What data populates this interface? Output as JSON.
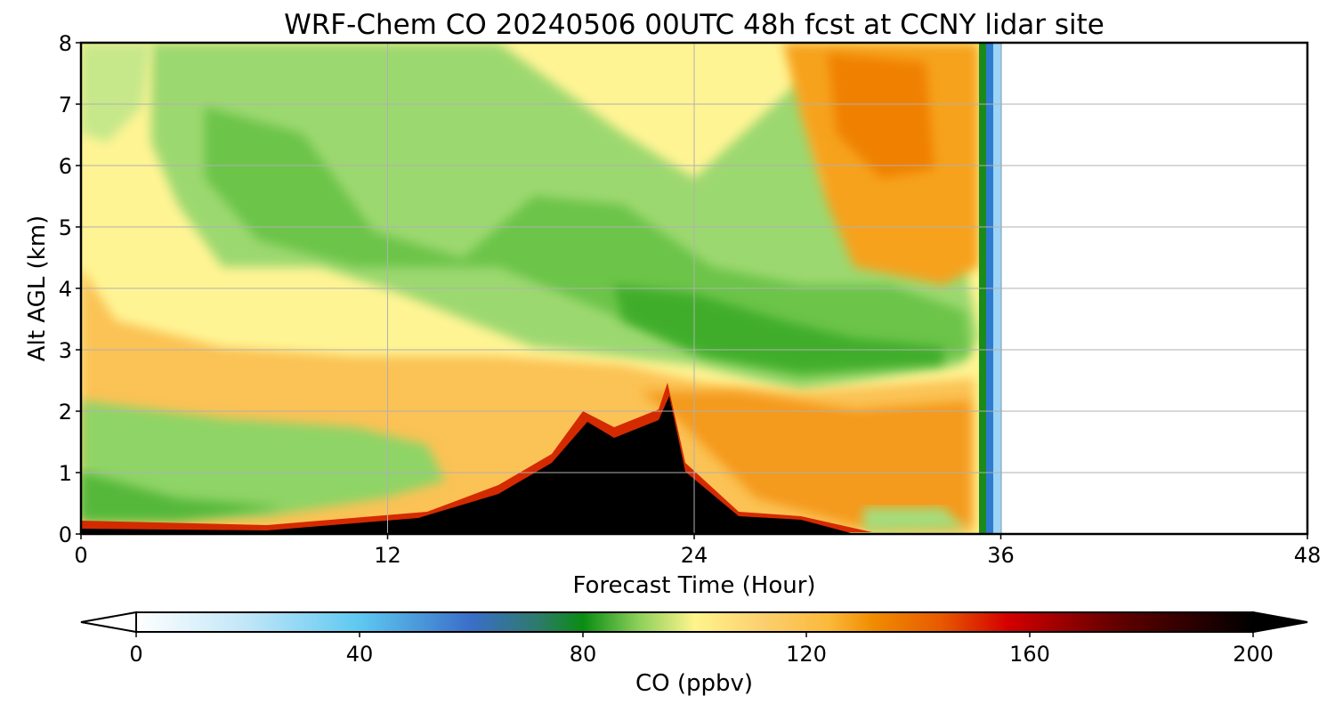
{
  "chart_data": {
    "type": "heatmap",
    "title": "WRF-Chem CO  20240506 00UTC 48h fcst at CCNY lidar site",
    "xlabel": "Forecast Time (Hour)",
    "ylabel": "Alt AGL (km)",
    "x_ticks": [
      "0",
      "12",
      "24",
      "36",
      "48"
    ],
    "y_ticks": [
      "0",
      "1",
      "2",
      "3",
      "4",
      "5",
      "6",
      "7",
      "8"
    ],
    "xlim": [
      0,
      48
    ],
    "ylim": [
      0,
      8
    ],
    "data_extent_hours": 36,
    "grid": true,
    "colorbar": {
      "label": "CO  (ppbv)",
      "ticks": [
        "0",
        "40",
        "80",
        "120",
        "160",
        "200"
      ],
      "range": [
        0,
        200
      ],
      "extend": "both",
      "orientation": "horizontal",
      "colors": [
        "#ffffff",
        "#5ec8f0",
        "#3a6ec8",
        "#0a8c14",
        "#8cd05a",
        "#fff48c",
        "#fbb93a",
        "#f08c00",
        "#d40000",
        "#600000",
        "#000000"
      ]
    },
    "bands": [
      {
        "name": "surface-black",
        "value": 200,
        "color": "#000000"
      },
      {
        "name": "surface-edge",
        "value": 150,
        "color": "#c80000"
      },
      {
        "name": "boundary-layer-orange",
        "value": 120,
        "color": "#f39c1e"
      },
      {
        "name": "mid-level-green",
        "value": 85,
        "color": "#6cc44a"
      },
      {
        "name": "upper-yellow",
        "value": 100,
        "color": "#fff494"
      },
      {
        "name": "upper-orange",
        "value": 130,
        "color": "#f28a00"
      },
      {
        "name": "lower-green",
        "value": 88,
        "color": "#8fd466"
      }
    ]
  }
}
